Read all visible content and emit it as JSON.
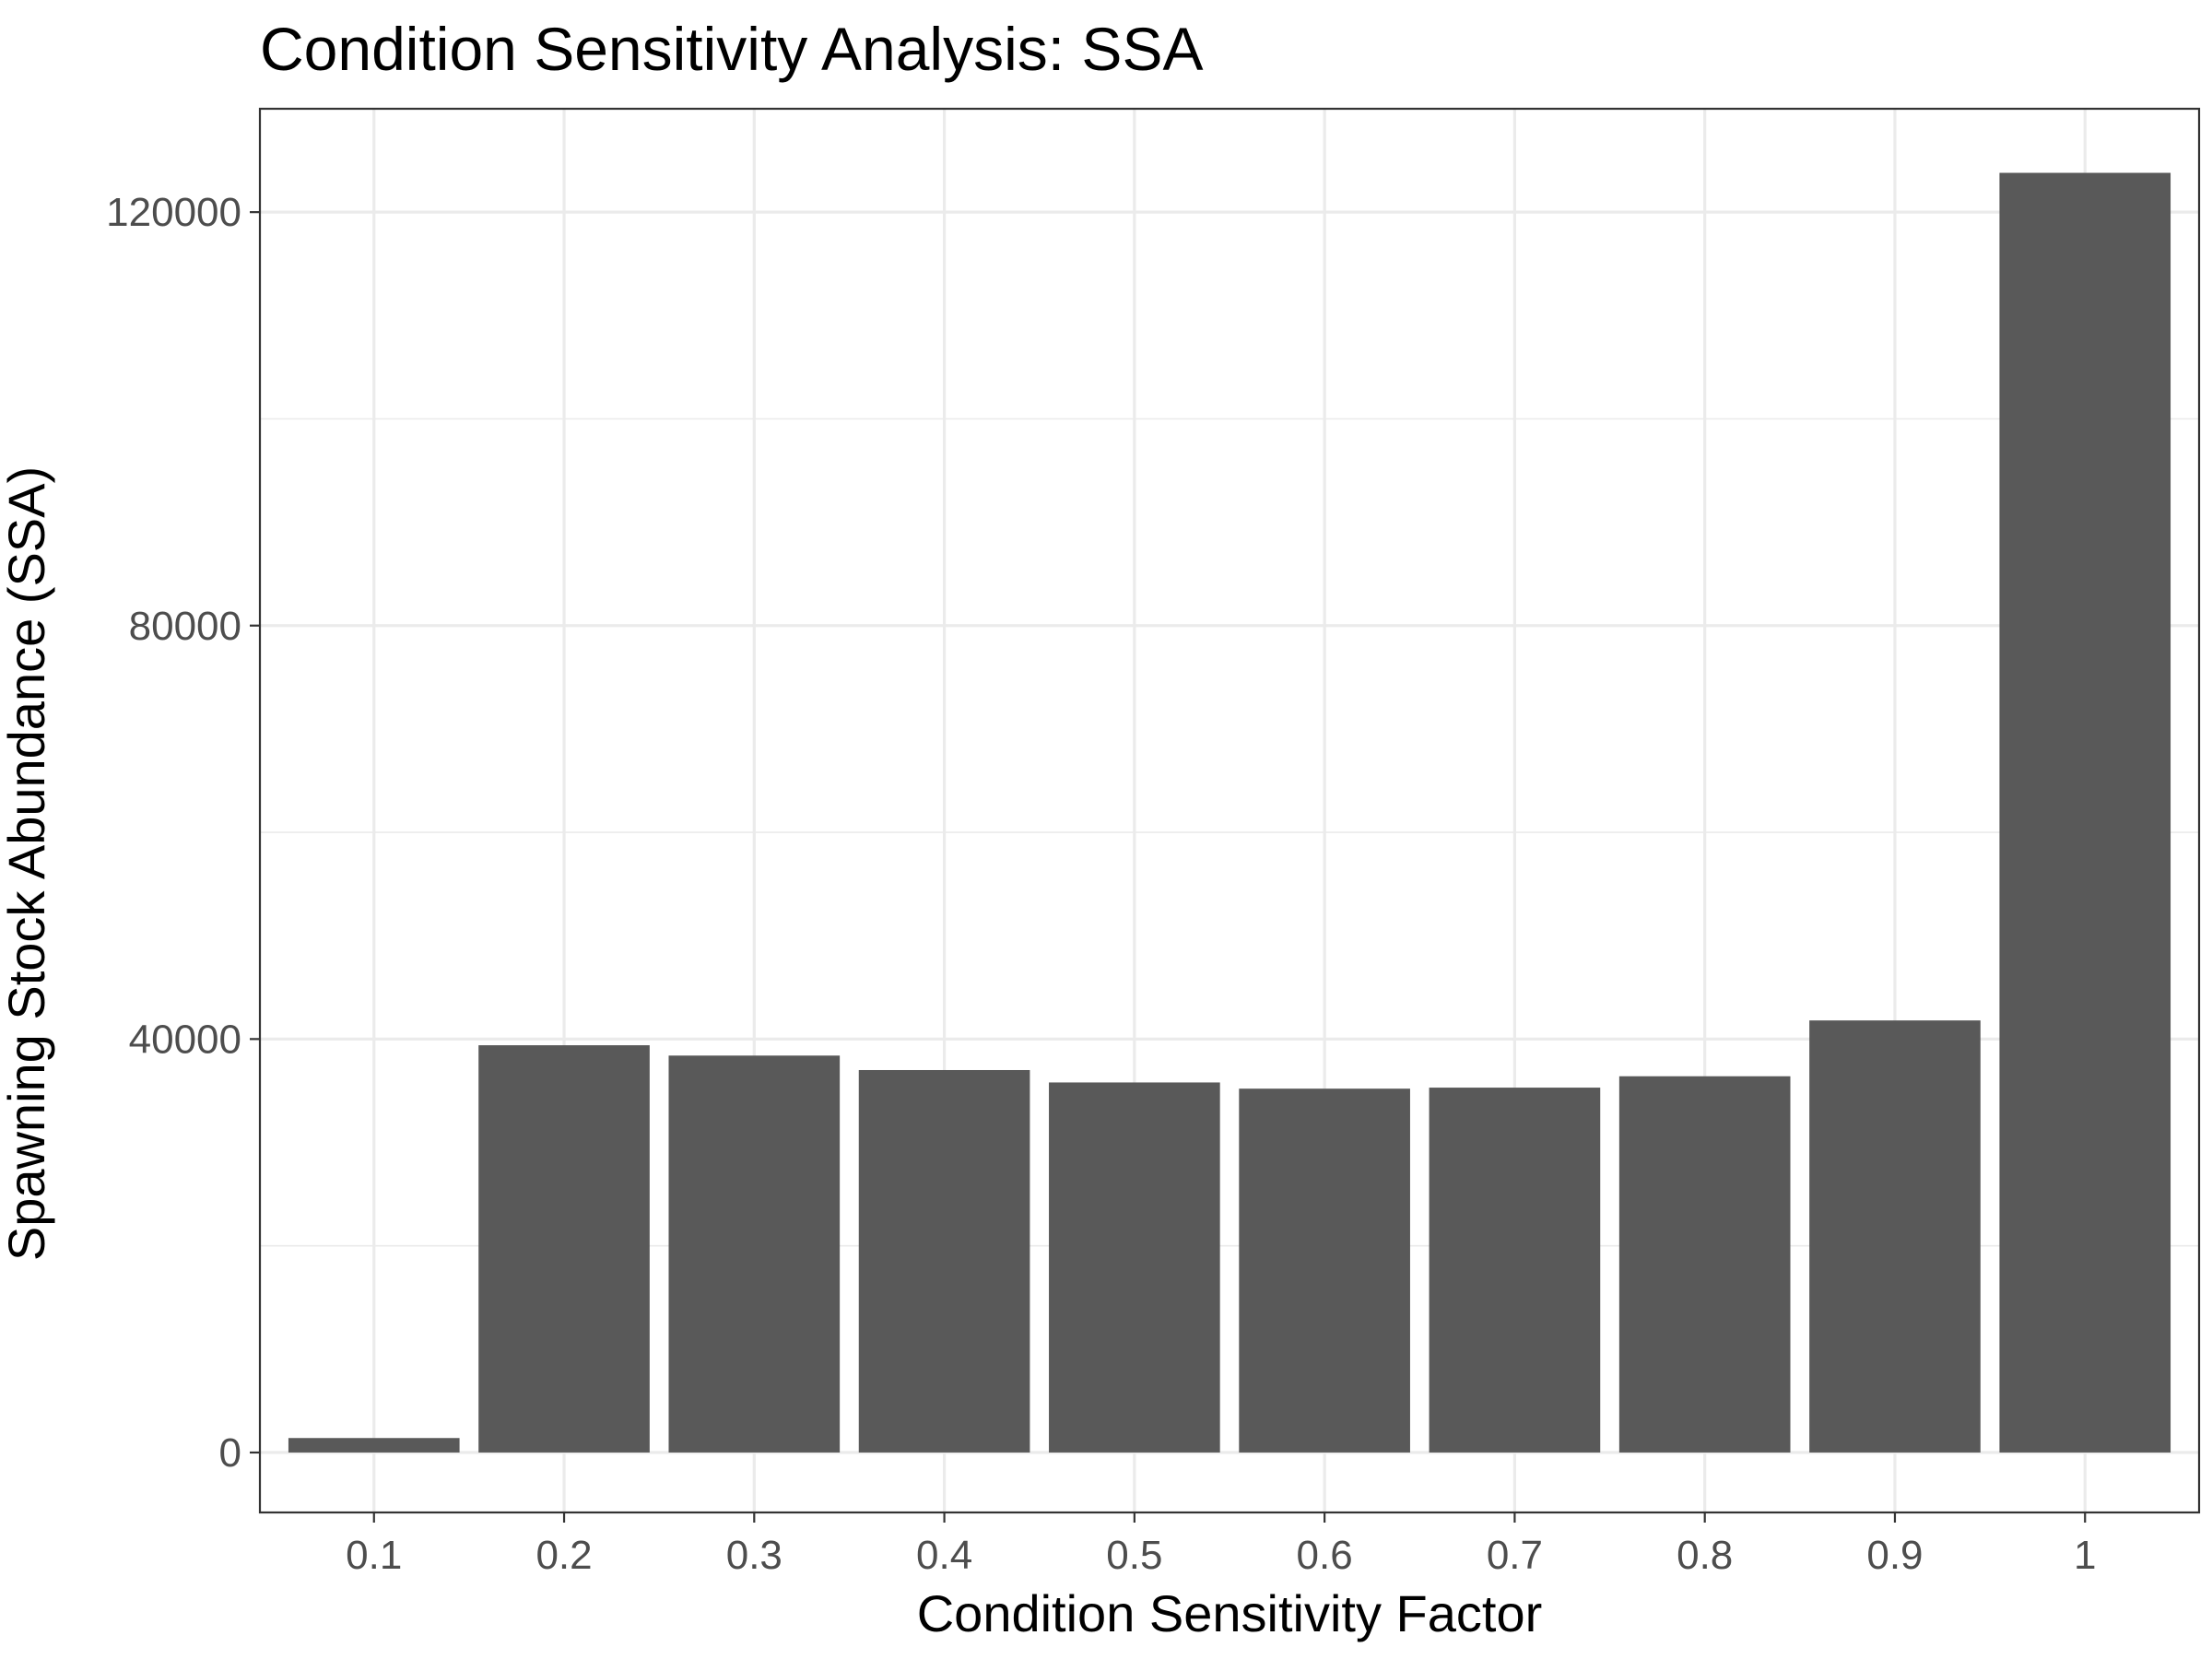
{
  "chart_data": {
    "type": "bar",
    "title": "Condition Sensitivity Analysis: SSA",
    "xlabel": "Condition Sensitivity Factor",
    "ylabel": "Spawning Stock Abundance (SSA)",
    "categories": [
      "0.1",
      "0.2",
      "0.3",
      "0.4",
      "0.5",
      "0.6",
      "0.7",
      "0.8",
      "0.9",
      "1"
    ],
    "values": [
      1400,
      39400,
      38400,
      37000,
      35800,
      35200,
      35300,
      36400,
      41800,
      123800
    ],
    "y_ticks": [
      0,
      40000,
      80000,
      120000
    ],
    "y_tick_labels": [
      "0",
      "40000",
      "80000",
      "120000"
    ],
    "ylim": [
      -5800,
      130000
    ],
    "grid": true,
    "bar_color": "#595959"
  }
}
